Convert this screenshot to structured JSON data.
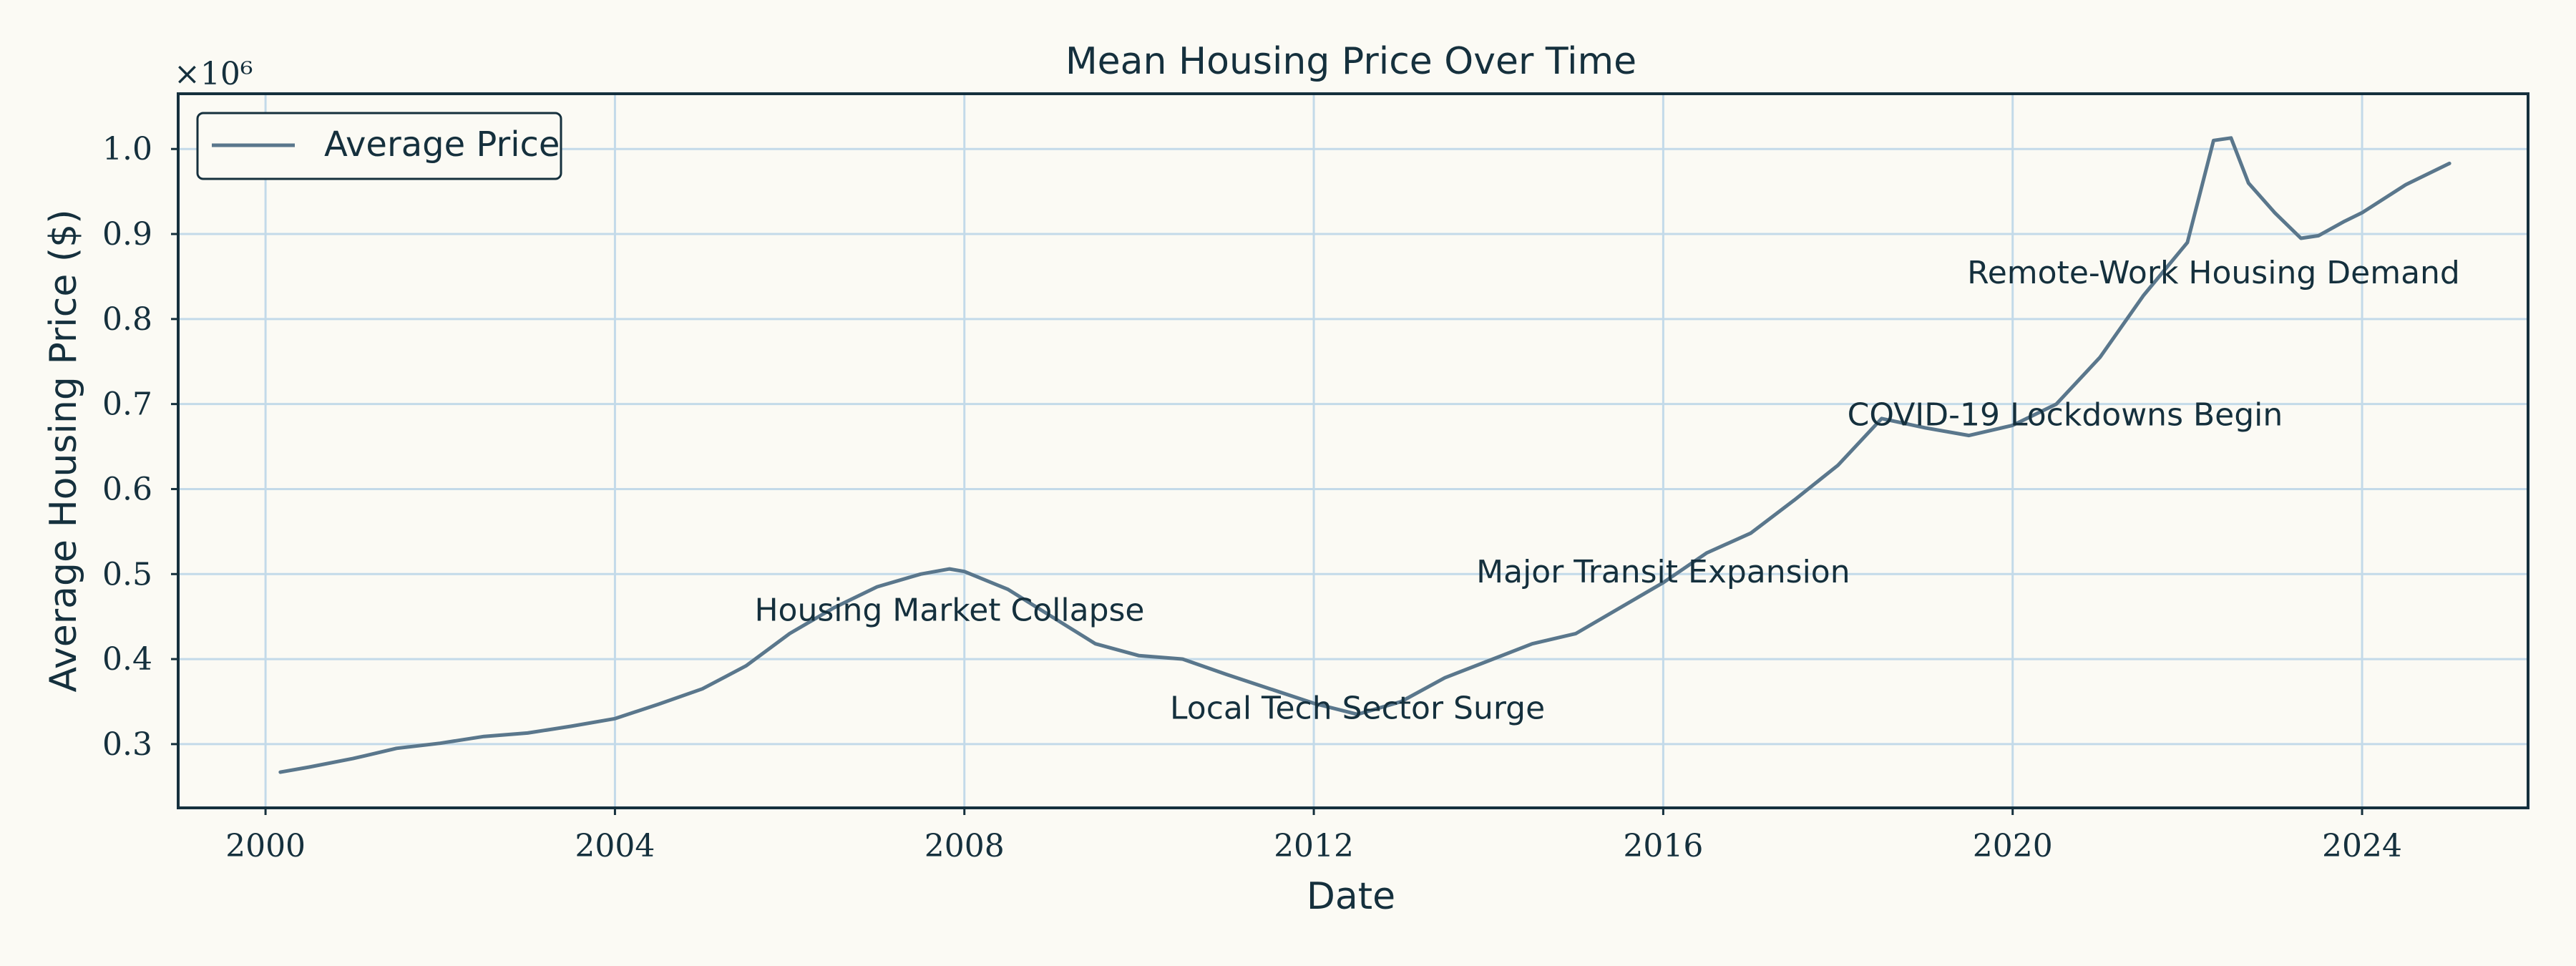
{
  "colors": {
    "background": "#fbfaf4",
    "line": "#5a778c",
    "frame": "#15303d",
    "grid": "#c3dae9"
  },
  "chart_data": {
    "type": "line",
    "title": "Mean Housing Price Over Time",
    "xlabel": "Date",
    "ylabel": "Average Housing Price ($)",
    "y_offset_label": "×10⁶",
    "xlim": [
      1999,
      2025.9
    ],
    "ylim": [
      0.225,
      1.065
    ],
    "x_ticks": [
      2000,
      2004,
      2008,
      2012,
      2016,
      2020,
      2024
    ],
    "x_tick_labels": [
      "2000",
      "2004",
      "2008",
      "2012",
      "2016",
      "2020",
      "2024"
    ],
    "y_ticks": [
      0.3,
      0.4,
      0.5,
      0.6,
      0.7,
      0.8,
      0.9,
      1.0
    ],
    "y_tick_labels": [
      "0.3",
      "0.4",
      "0.5",
      "0.6",
      "0.7",
      "0.8",
      "0.9",
      "1.0"
    ],
    "grid": true,
    "legend_position": "top-left",
    "series": [
      {
        "name": "Average Price",
        "x": [
          2000.17,
          2000.5,
          2001.0,
          2001.5,
          2002.0,
          2002.5,
          2003.0,
          2003.5,
          2004.0,
          2004.5,
          2005.0,
          2005.5,
          2006.0,
          2006.5,
          2007.0,
          2007.5,
          2007.83,
          2008.0,
          2008.5,
          2009.0,
          2009.5,
          2010.0,
          2010.5,
          2011.0,
          2011.5,
          2012.0,
          2012.5,
          2013.0,
          2013.5,
          2014.0,
          2014.5,
          2015.0,
          2015.5,
          2016.0,
          2016.5,
          2017.0,
          2017.5,
          2018.0,
          2018.5,
          2019.0,
          2019.5,
          2020.0,
          2020.5,
          2021.0,
          2021.5,
          2022.0,
          2022.3,
          2022.5,
          2022.7,
          2023.0,
          2023.3,
          2023.5,
          2023.8,
          2024.0,
          2024.5,
          2025.0
        ],
        "y": [
          0.267,
          0.273,
          0.283,
          0.295,
          0.301,
          0.309,
          0.313,
          0.321,
          0.33,
          0.347,
          0.365,
          0.392,
          0.43,
          0.46,
          0.485,
          0.5,
          0.506,
          0.503,
          0.482,
          0.45,
          0.418,
          0.404,
          0.4,
          0.382,
          0.365,
          0.348,
          0.335,
          0.35,
          0.378,
          0.398,
          0.418,
          0.43,
          0.46,
          0.49,
          0.525,
          0.548,
          0.587,
          0.628,
          0.683,
          0.672,
          0.663,
          0.675,
          0.7,
          0.755,
          0.828,
          0.89,
          1.01,
          1.013,
          0.96,
          0.925,
          0.895,
          0.898,
          0.915,
          0.925,
          0.958,
          0.983
        ]
      }
    ],
    "annotations": [
      {
        "text": "Housing Market Collapse",
        "x": 2007.83,
        "y": 0.445
      },
      {
        "text": "Local Tech Sector Surge",
        "x": 2012.5,
        "y": 0.33
      },
      {
        "text": "Major Transit Expansion",
        "x": 2016.0,
        "y": 0.49
      },
      {
        "text": "COVID-19 Lockdowns Begin",
        "x": 2020.6,
        "y": 0.675
      },
      {
        "text": "Remote-Work Housing Demand",
        "x": 2022.3,
        "y": 0.842
      }
    ]
  }
}
